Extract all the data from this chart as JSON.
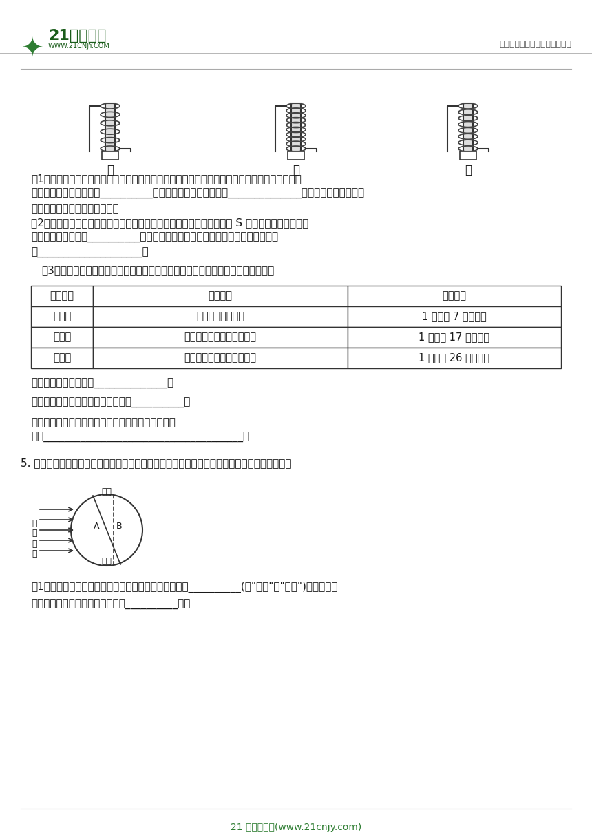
{
  "bg_color": "#ffffff",
  "header_logo_text": "21世纪教育",
  "header_logo_sub": "WWW.21CNJY.COM",
  "header_right_text": "中小学教育资源及组卷应用平台",
  "footer_text": "21 世纪教育网(www.21cnjy.com)",
  "header_line_color": "#888888",
  "footer_line_color": "#888888",
  "content_line1_color": "#888888",
  "table_border_color": "#333333",
  "table_header_bg": "#ffffff",
  "green_color": "#2e7d32",
  "dark_green": "#1a5c1a",
  "text_color": "#1a1a1a",
  "gray_text": "#555555",
  "electromagnet_labels": [
    "甲",
    "乙",
    "丙"
  ],
  "q3_intro": "（3）他们在研究电磁铁磁力大小与线圈中电流强度的关系，得到下面的实验数据。",
  "table_headers": [
    "实验次数",
    "改变因素",
    "测试结果"
  ],
  "table_rows": [
    [
      "第一次",
      "用一节新的干电池",
      "1 次吸住 7 枚大头针"
    ],
    [
      "第二次",
      "用二节新的干电池串联起来",
      "1 次吸住 17 枚大头针"
    ],
    [
      "第三次",
      "用三节新的干电池串联起来",
      "1 次吸住 26 枚大头针"
    ]
  ],
  "q1_text1": "（1）他们先研究电磁铁的磁力大小与缠绕在铁芯上的线圈的圈数的关系，你认为他们应选择图中",
  "q1_text2": "的哪两个装置进行实验？__________。此实验能得出：在线圈中______________相同时，线圈的圈数绕",
  "q1_text3": "得越多，电磁铁的磁力就越强。",
  "q2_text1": "（2）小明同学拿着一枚小磁针靠近甲装置铁芯下端，结果发现小磁针的 S 极被排斥，则可推测甲",
  "q2_text2": "装置中铁芯的上端是__________极。要改变甲图中电磁铁南北极方向最简单的方法",
  "q2_text3": "是____________________。",
  "q3_factor_text": "实验中改变的因素是：______________。",
  "q3_constant_text": "不变的因素是：缠绕在铁芯上线圈的__________。",
  "q3_conclusion_text1": "分析实验中记录在表格中的数据，归纳出实验的结论",
  "q3_conclusion_text2": "是：______________________________________。",
  "q5_intro": "5. 下图是地球围绕太阳转动过程中，阳光照射地球某一时刻的示意图。请根据图回答下列问题：",
  "q5_q1_text1": "（1）当地球绕太阳运动，处在上图所示位置时，地球上__________(填\"北极\"或\"南极\")区域会发生",
  "q5_q1_text2": "极夜现象。此时，我们中国正处于__________季。"
}
